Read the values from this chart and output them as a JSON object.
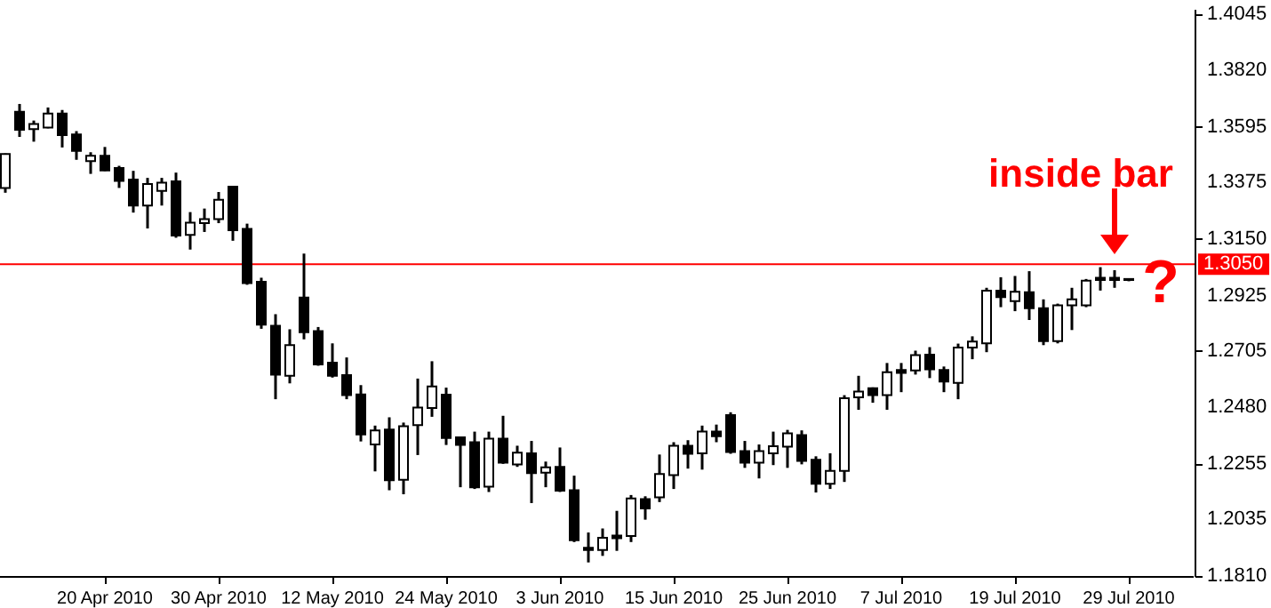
{
  "chart_data": {
    "type": "candlestick",
    "categories": [
      null,
      null,
      null,
      null,
      null,
      null,
      null,
      "20 Apr 2010",
      null,
      null,
      null,
      null,
      null,
      null,
      null,
      "30 Apr 2010",
      null,
      null,
      null,
      null,
      null,
      null,
      null,
      "12 May 2010",
      null,
      null,
      null,
      null,
      null,
      null,
      null,
      "24 May 2010",
      null,
      null,
      null,
      null,
      null,
      null,
      null,
      "3 Jun 2010",
      null,
      null,
      null,
      null,
      null,
      null,
      null,
      "15 Jun 2010",
      null,
      null,
      null,
      null,
      null,
      null,
      null,
      "25 Jun 2010",
      null,
      null,
      null,
      null,
      null,
      null,
      null,
      "7 Jul 2010",
      null,
      null,
      null,
      null,
      null,
      null,
      null,
      "19 Jul 2010",
      null,
      null,
      null,
      null,
      null,
      null,
      null,
      "29 Jul 2010"
    ],
    "ohlc": [
      [
        1.3353,
        1.349,
        1.3334,
        1.3488
      ],
      [
        1.3656,
        1.3687,
        1.3556,
        1.3584
      ],
      [
        1.3587,
        1.3621,
        1.3537,
        1.3607
      ],
      [
        1.3593,
        1.3673,
        1.359,
        1.3649
      ],
      [
        1.3649,
        1.3663,
        1.3514,
        1.3563
      ],
      [
        1.3566,
        1.3579,
        1.3465,
        1.35
      ],
      [
        1.346,
        1.3495,
        1.3409,
        1.3481
      ],
      [
        1.3481,
        1.3516,
        1.342,
        1.3423
      ],
      [
        1.3432,
        1.3441,
        1.3353,
        1.3381
      ],
      [
        1.3386,
        1.3421,
        1.3255,
        1.3283
      ],
      [
        1.3283,
        1.3393,
        1.3192,
        1.3369
      ],
      [
        1.3341,
        1.3393,
        1.3283,
        1.3374
      ],
      [
        1.3379,
        1.3414,
        1.3155,
        1.3164
      ],
      [
        1.3166,
        1.3257,
        1.3108,
        1.3215
      ],
      [
        1.3213,
        1.3271,
        1.3178,
        1.3229
      ],
      [
        1.3229,
        1.3337,
        1.3213,
        1.3306
      ],
      [
        1.3358,
        1.336,
        1.3143,
        1.3185
      ],
      [
        1.319,
        1.3211,
        1.2968,
        1.2975
      ],
      [
        1.298,
        1.2996,
        1.2793,
        1.2809
      ],
      [
        1.2805,
        1.2851,
        1.2513,
        1.2611
      ],
      [
        1.2606,
        1.2791,
        1.2576,
        1.2728
      ],
      [
        1.2917,
        1.3092,
        1.2751,
        1.2779
      ],
      [
        1.2784,
        1.28,
        1.2646,
        1.2651
      ],
      [
        1.2658,
        1.2735,
        1.2599,
        1.2606
      ],
      [
        1.2609,
        1.2679,
        1.2513,
        1.2529
      ],
      [
        1.2532,
        1.2569,
        1.2345,
        1.2373
      ],
      [
        1.2333,
        1.2408,
        1.2226,
        1.2389
      ],
      [
        1.2392,
        1.2441,
        1.2151,
        1.2191
      ],
      [
        1.2193,
        1.242,
        1.2135,
        1.2406
      ],
      [
        1.241,
        1.2595,
        1.2291,
        1.248
      ],
      [
        1.2478,
        1.2664,
        1.2443,
        1.2564
      ],
      [
        1.2531,
        1.2559,
        1.2331,
        1.2359
      ],
      [
        1.2361,
        1.2363,
        1.2163,
        1.2331
      ],
      [
        1.2342,
        1.2384,
        1.2156,
        1.2163
      ],
      [
        1.2165,
        1.2384,
        1.2144,
        1.2356
      ],
      [
        1.2356,
        1.2447,
        1.2256,
        1.2261
      ],
      [
        1.2254,
        1.2328,
        1.2244,
        1.23
      ],
      [
        1.2298,
        1.2347,
        1.21,
        1.2219
      ],
      [
        1.2221,
        1.2265,
        1.2163,
        1.2242
      ],
      [
        1.2244,
        1.2321,
        1.2144,
        1.2149
      ],
      [
        1.2151,
        1.2209,
        1.1945,
        1.1952
      ],
      [
        1.1922,
        1.1983,
        1.1864,
        1.1913
      ],
      [
        1.1913,
        1.1999,
        1.189,
        1.1962
      ],
      [
        1.1971,
        1.2069,
        1.191,
        1.196
      ],
      [
        1.1969,
        1.2132,
        1.1945,
        1.2118
      ],
      [
        1.2116,
        1.2127,
        1.2034,
        1.2079
      ],
      [
        1.2123,
        1.2293,
        1.2104,
        1.2216
      ],
      [
        1.2211,
        1.2342,
        1.2156,
        1.2328
      ],
      [
        1.2328,
        1.235,
        1.2237,
        1.2296
      ],
      [
        1.2298,
        1.2408,
        1.2233,
        1.2384
      ],
      [
        1.2384,
        1.2412,
        1.2342,
        1.2366
      ],
      [
        1.245,
        1.2461,
        1.2296,
        1.2303
      ],
      [
        1.2307,
        1.2347,
        1.224,
        1.2261
      ],
      [
        1.2261,
        1.2333,
        1.2198,
        1.2307
      ],
      [
        1.2298,
        1.2384,
        1.2251,
        1.2326
      ],
      [
        1.2324,
        1.2391,
        1.224,
        1.2377
      ],
      [
        1.237,
        1.2389,
        1.2254,
        1.2268
      ],
      [
        1.2272,
        1.2286,
        1.2142,
        1.2177
      ],
      [
        1.2177,
        1.2298,
        1.2156,
        1.2228
      ],
      [
        1.2228,
        1.2529,
        1.2184,
        1.2517
      ],
      [
        1.252,
        1.2606,
        1.2471,
        1.2543
      ],
      [
        1.2557,
        1.256,
        1.2499,
        1.2529
      ],
      [
        1.2529,
        1.2657,
        1.2471,
        1.262
      ],
      [
        1.2629,
        1.2657,
        1.2541,
        1.2618
      ],
      [
        1.2627,
        1.2706,
        1.2611,
        1.2688
      ],
      [
        1.269,
        1.272,
        1.2597,
        1.2632
      ],
      [
        1.2629,
        1.2643,
        1.2541,
        1.2583
      ],
      [
        1.2578,
        1.2734,
        1.2513,
        1.2718
      ],
      [
        1.2718,
        1.2763,
        1.2672,
        1.2742
      ],
      [
        1.2735,
        1.2956,
        1.27,
        1.2945
      ],
      [
        1.2945,
        1.2998,
        1.2879,
        1.2919
      ],
      [
        1.2903,
        1.3003,
        1.2863,
        1.294
      ],
      [
        1.2938,
        1.3022,
        1.2828,
        1.2875
      ],
      [
        1.2875,
        1.291,
        1.2728,
        1.2744
      ],
      [
        1.2744,
        1.2893,
        1.2735,
        1.2886
      ],
      [
        1.2886,
        1.2956,
        1.2788,
        1.291
      ],
      [
        1.2886,
        1.2991,
        1.2879,
        1.2984
      ],
      [
        1.2996,
        1.3038,
        1.2945,
        1.2987
      ],
      [
        1.2996,
        1.3026,
        1.2956,
        1.2987
      ],
      [
        1.2991,
        1.2993,
        1.2982,
        1.2987
      ]
    ],
    "ylim": [
      1.181,
      1.4065
    ],
    "yticks": [
      1.4045,
      {
        "value": 1.382,
        "label": "1.3820"
      },
      1.3595,
      1.3375,
      {
        "value": 1.315,
        "label": "1.3150"
      },
      1.2925,
      1.2705,
      {
        "value": 1.248,
        "label": "1.2480"
      },
      1.2255,
      1.2035,
      {
        "value": 1.181,
        "label": "1.1810"
      }
    ],
    "ref_lines": [
      {
        "axis": "y",
        "value": 1.305,
        "label": "1.3050",
        "color": "#ff0000"
      }
    ],
    "annotations": [
      "inside bar",
      "?"
    ]
  }
}
